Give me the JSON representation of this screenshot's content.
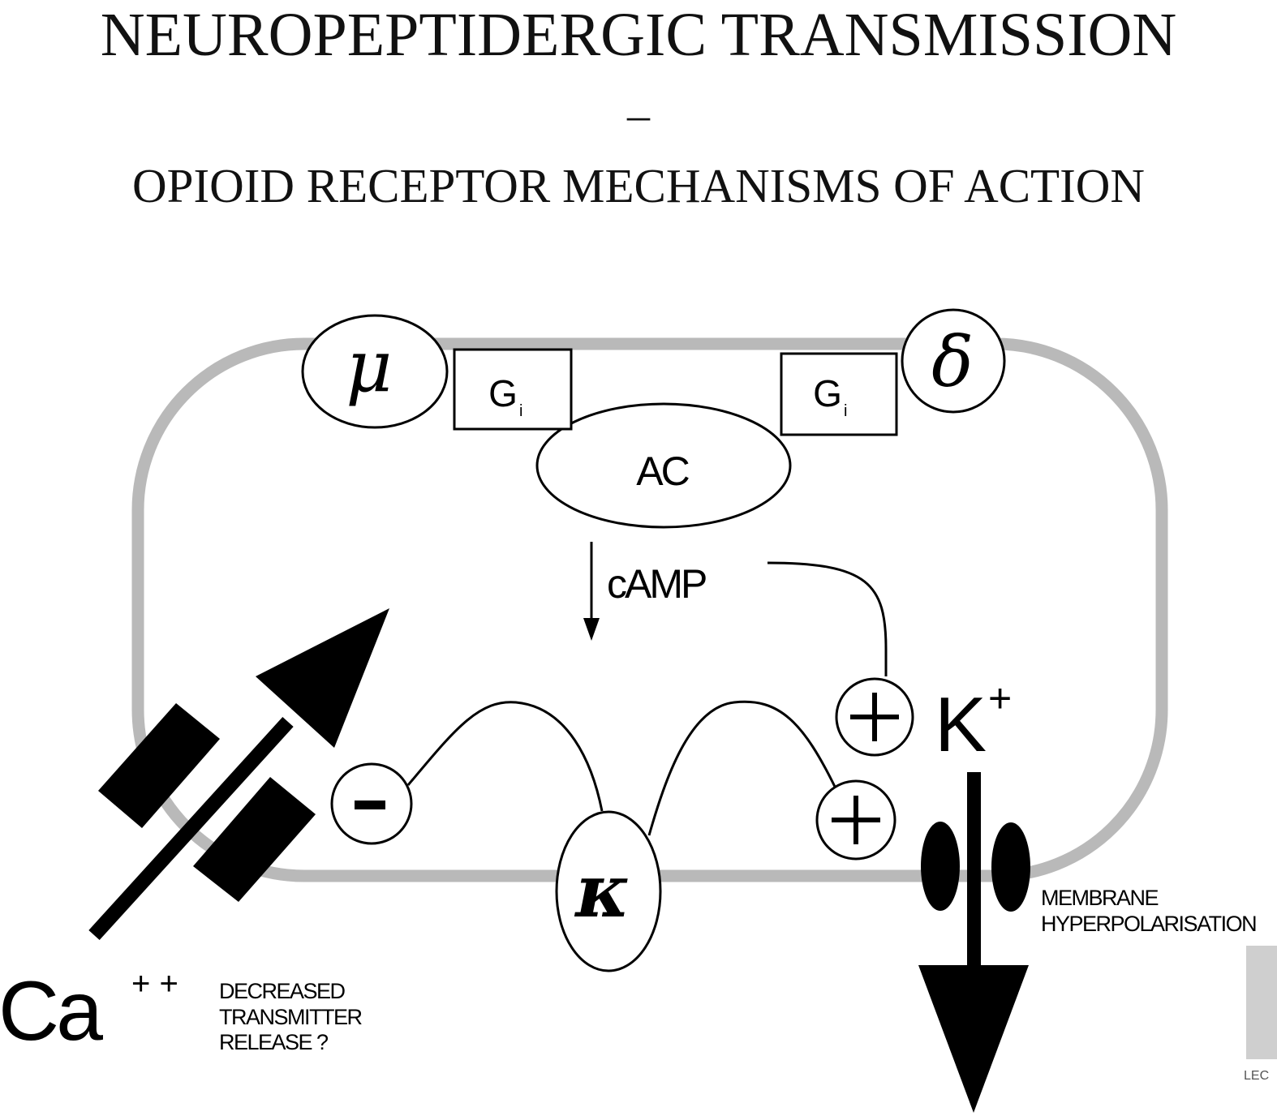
{
  "title": "NEUROPEPTIDERGIC TRANSMISSION",
  "separator": "–",
  "subtitle": "OPIOID RECEPTOR MECHANISMS OF ACTION",
  "diagram": {
    "receptors": {
      "mu": "μ",
      "delta": "δ",
      "kappa": "κ"
    },
    "g_protein": {
      "label": "G",
      "subscript": "i"
    },
    "enzyme": "AC",
    "second_messenger": "cAMP",
    "signs": {
      "minus": "-",
      "plus": "+"
    },
    "potassium": {
      "symbol": "K",
      "charge": "+"
    },
    "calcium": {
      "symbol": "Ca",
      "charge": "+ +"
    },
    "ca_effect": [
      "DECREASED",
      "TRANSMITTER",
      "RELEASE ?"
    ],
    "k_effect": [
      "MEMBRANE",
      "HYPERPOLARISATION"
    ],
    "corner_text": "LEC"
  },
  "colors": {
    "membrane": "#b9b9b9",
    "ink": "#000000",
    "background": "#ffffff"
  }
}
